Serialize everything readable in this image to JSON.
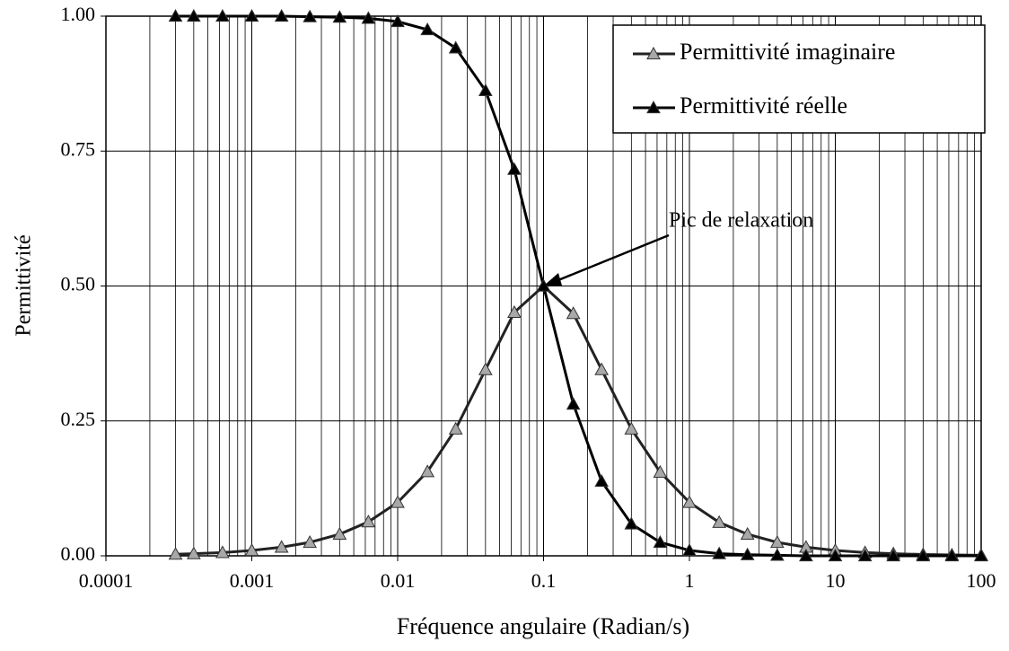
{
  "chart_data": {
    "type": "line",
    "x_label": "Fréquence angulaire (Radian/s)",
    "y_label": "Permittivité",
    "annotation": "Pic de relaxation",
    "xscale": "log",
    "xlim": [
      0.0001,
      100
    ],
    "xticks": [
      0.0001,
      0.001,
      0.01,
      0.1,
      1,
      10,
      100
    ],
    "ylim": [
      0,
      1
    ],
    "yticks": [
      {
        "value": 0,
        "label": "0.00"
      },
      {
        "value": 0.25,
        "label": "0.25"
      },
      {
        "value": 0.5,
        "label": "0.50"
      },
      {
        "value": 0.75,
        "label": "0.75"
      },
      {
        "value": 1,
        "label": "1.00"
      }
    ],
    "grid": true,
    "minor_grid": true,
    "legend": "upper right",
    "x": [
      0.0003,
      0.0004,
      0.00063,
      0.001,
      0.0016,
      0.0025,
      0.004,
      0.0063,
      0.01,
      0.016,
      0.025,
      0.04,
      0.063,
      0.1,
      0.16,
      0.25,
      0.4,
      0.63,
      1,
      1.6,
      2.5,
      4,
      6.3,
      10,
      16,
      25,
      40,
      63,
      100
    ],
    "series": [
      {
        "name": "Permittivité imaginaire",
        "color": "#a8a8a8",
        "line_color": "#222222",
        "values": [
          0.003,
          0.004,
          0.006,
          0.01,
          0.016,
          0.025,
          0.04,
          0.063,
          0.099,
          0.156,
          0.235,
          0.345,
          0.451,
          0.5,
          0.449,
          0.345,
          0.235,
          0.155,
          0.099,
          0.062,
          0.04,
          0.025,
          0.016,
          0.01,
          0.006,
          0.004,
          0.0025,
          0.0016,
          0.001
        ]
      },
      {
        "name": "Permittivité réelle",
        "color": "#000000",
        "line_color": "#000000",
        "values": [
          1,
          1,
          1,
          1,
          1,
          0.999,
          0.998,
          0.996,
          0.99,
          0.975,
          0.941,
          0.862,
          0.716,
          0.5,
          0.281,
          0.138,
          0.059,
          0.025,
          0.01,
          0.004,
          0.002,
          0.001,
          0,
          0,
          0,
          0,
          0,
          0,
          0
        ]
      }
    ]
  }
}
